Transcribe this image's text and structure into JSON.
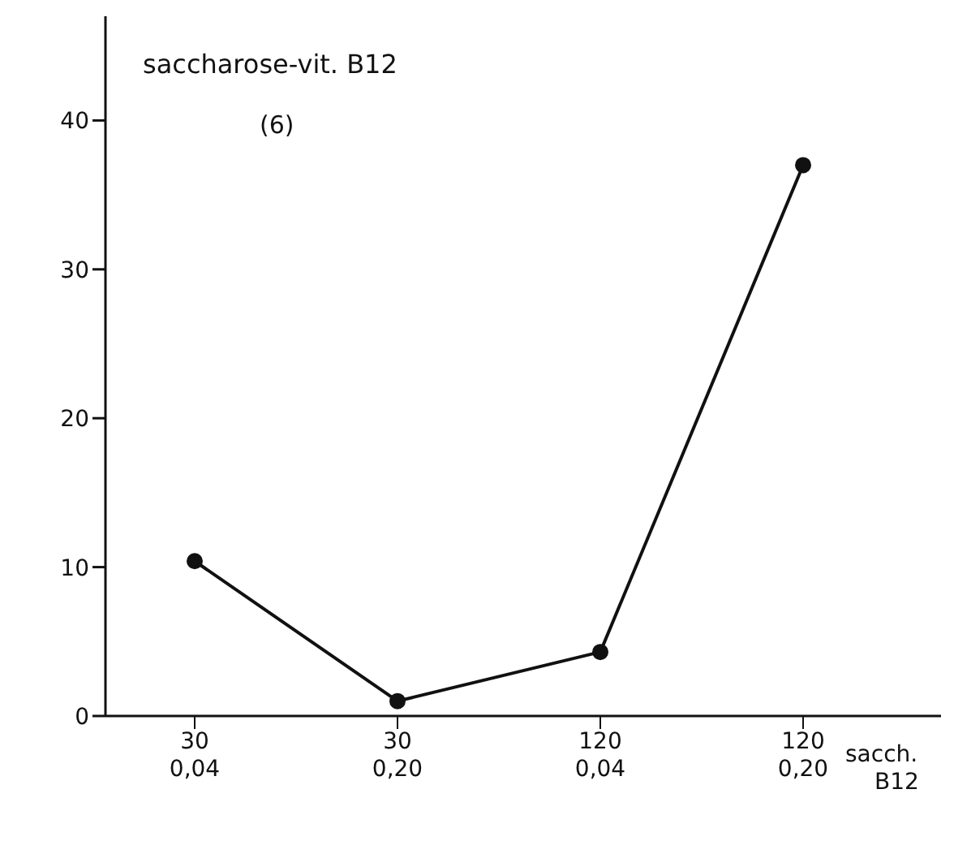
{
  "chart_data": {
    "type": "line",
    "title": "saccharose-vit. B12",
    "subtitle": "(6)",
    "xlabel": "sacch.\nB12",
    "categories": [
      "30\n0,04",
      "30\n0,20",
      "120\n0,04",
      "120\n0,20"
    ],
    "series": [
      {
        "color": "#111111",
        "values": [
          10.4,
          1.0,
          4.3,
          37
        ]
      }
    ],
    "ylim": [
      0,
      47
    ],
    "yticks": [
      0,
      10,
      20,
      30,
      40
    ],
    "marker": "circle",
    "line_style": "solid"
  }
}
